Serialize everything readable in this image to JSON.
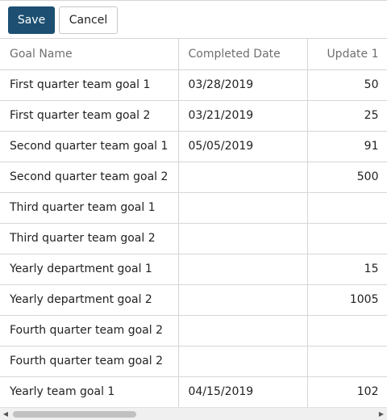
{
  "toolbar": {
    "save_label": "Save",
    "cancel_label": "Cancel"
  },
  "table": {
    "headers": [
      "Goal Name",
      "Completed Date",
      "Update 1"
    ],
    "rows": [
      {
        "goal": "First quarter team goal 1",
        "date": "03/28/2019",
        "update1": "50"
      },
      {
        "goal": "First quarter team goal 2",
        "date": "03/21/2019",
        "update1": "25"
      },
      {
        "goal": "Second quarter team goal 1",
        "date": "05/05/2019",
        "update1": "91"
      },
      {
        "goal": "Second quarter team goal 2",
        "date": "",
        "update1": "500"
      },
      {
        "goal": "Third quarter team goal 1",
        "date": "",
        "update1": ""
      },
      {
        "goal": "Third quarter team goal 2",
        "date": "",
        "update1": ""
      },
      {
        "goal": "Yearly department goal 1",
        "date": "",
        "update1": "15"
      },
      {
        "goal": "Yearly department goal 2",
        "date": "",
        "update1": "1005"
      },
      {
        "goal": "Fourth quarter team goal 2",
        "date": "",
        "update1": ""
      },
      {
        "goal": "Fourth quarter team goal 2",
        "date": "",
        "update1": ""
      },
      {
        "goal": "Yearly team goal 1",
        "date": "04/15/2019",
        "update1": "102"
      }
    ]
  },
  "scrollbar": {
    "left_icon": "chevron-left-icon",
    "right_icon": "chevron-right-icon"
  }
}
